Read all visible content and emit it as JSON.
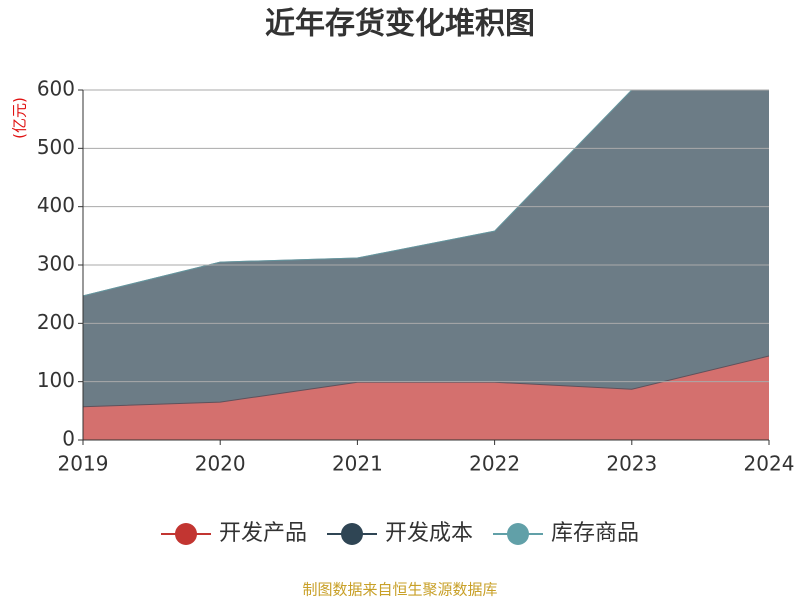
{
  "chart_data": {
    "type": "stacked-area",
    "title": "近年存货变化堆积图",
    "y_unit": "(亿元)",
    "source": "制图数据来自恒生聚源数据库",
    "categories": [
      "2019",
      "2020",
      "2021",
      "2022",
      "2023",
      "2024"
    ],
    "series": [
      {
        "name": "开发产品",
        "color": "#c23531",
        "values": [
          57,
          65,
          99,
          99,
          87,
          144
        ]
      },
      {
        "name": "开发成本",
        "color": "#2f4554",
        "values": [
          190,
          240,
          213,
          259,
          513,
          456
        ]
      },
      {
        "name": "库存商品",
        "color": "#61a0a8",
        "values": [
          0,
          0,
          0,
          0,
          0,
          0
        ]
      }
    ],
    "ylim": [
      0,
      600
    ],
    "yticks": [
      0,
      100,
      200,
      300,
      400,
      500,
      600
    ],
    "grid": true
  }
}
